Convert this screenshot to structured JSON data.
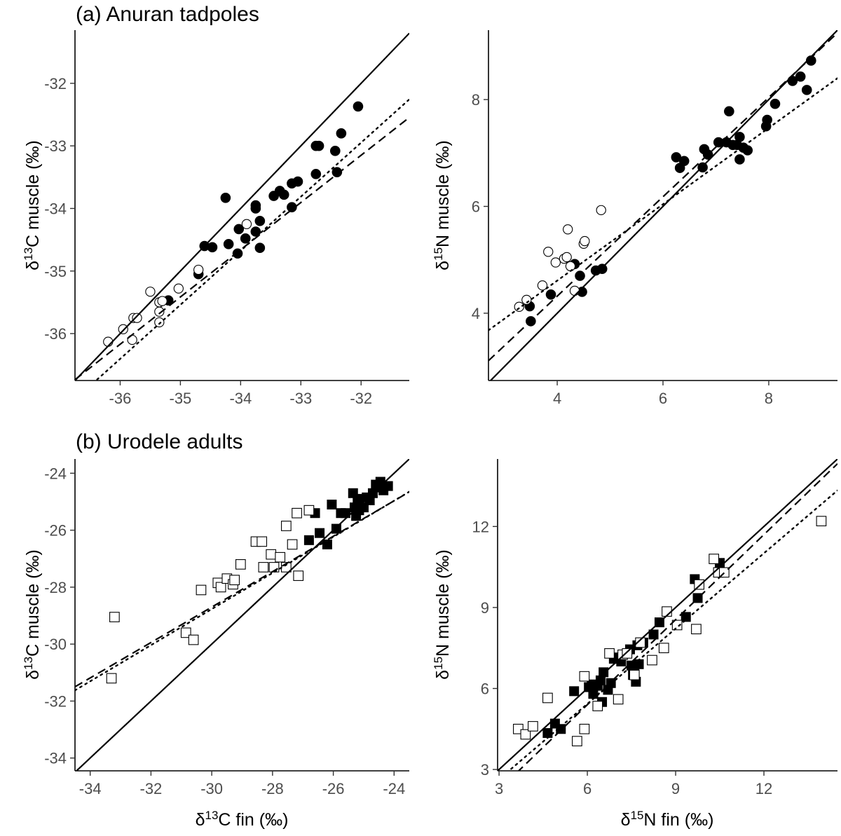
{
  "figure": {
    "row_titles": [
      "(a) Anuran tadpoles",
      "(b) Urodele adults"
    ]
  },
  "chart_data": [
    {
      "type": "scatter",
      "panel": "a-left",
      "title": "(a) Anuran tadpoles",
      "ylabel": "δ13C muscle (‰)",
      "xlabel": "",
      "xlim": [
        -36.75,
        -31.2
      ],
      "ylim": [
        -36.75,
        -31.15
      ],
      "xticks": [
        -36,
        -35,
        -34,
        -33,
        -32
      ],
      "yticks": [
        -36,
        -35,
        -34,
        -33,
        -32
      ],
      "marker": "circle",
      "series": [
        {
          "filled": true,
          "points": [
            [
              -35.2,
              -35.47
            ],
            [
              -34.7,
              -35.05
            ],
            [
              -34.6,
              -34.6
            ],
            [
              -34.47,
              -34.62
            ],
            [
              -34.25,
              -33.83
            ],
            [
              -34.2,
              -34.57
            ],
            [
              -34.05,
              -34.72
            ],
            [
              -34.03,
              -34.33
            ],
            [
              -33.92,
              -34.48
            ],
            [
              -33.75,
              -34.37
            ],
            [
              -33.75,
              -33.95
            ],
            [
              -33.75,
              -34.0
            ],
            [
              -33.68,
              -34.63
            ],
            [
              -33.68,
              -34.2
            ],
            [
              -33.45,
              -33.8
            ],
            [
              -33.35,
              -33.72
            ],
            [
              -33.28,
              -33.78
            ],
            [
              -33.15,
              -33.6
            ],
            [
              -33.15,
              -33.98
            ],
            [
              -33.05,
              -33.57
            ],
            [
              -32.75,
              -33.45
            ],
            [
              -32.75,
              -33.0
            ],
            [
              -32.7,
              -33.0
            ],
            [
              -32.43,
              -33.08
            ],
            [
              -32.4,
              -33.42
            ],
            [
              -32.33,
              -32.8
            ],
            [
              -32.05,
              -32.37
            ]
          ]
        },
        {
          "filled": false,
          "points": [
            [
              -36.2,
              -36.13
            ],
            [
              -35.95,
              -35.93
            ],
            [
              -35.8,
              -36.1
            ],
            [
              -35.78,
              -35.75
            ],
            [
              -35.72,
              -35.75
            ],
            [
              -35.5,
              -35.33
            ],
            [
              -35.35,
              -35.5
            ],
            [
              -35.35,
              -35.65
            ],
            [
              -35.35,
              -35.82
            ],
            [
              -35.3,
              -35.48
            ],
            [
              -35.03,
              -35.28
            ],
            [
              -34.7,
              -34.98
            ],
            [
              -33.9,
              -34.25
            ]
          ]
        }
      ],
      "lines": [
        {
          "style": "solid",
          "intercept": 0,
          "slope": 1
        },
        {
          "style": "dashed",
          "intercept": -8.99,
          "slope": 0.755
        },
        {
          "style": "dotted",
          "intercept": -5.3,
          "slope": 0.864
        }
      ]
    },
    {
      "type": "scatter",
      "panel": "a-right",
      "title": "",
      "ylabel": "δ15N muscle (‰)",
      "xlabel": "",
      "xlim": [
        2.7,
        9.3
      ],
      "ylim": [
        2.74,
        9.3
      ],
      "xticks": [
        4,
        6,
        8
      ],
      "yticks": [
        4,
        6,
        8
      ],
      "marker": "circle",
      "series": [
        {
          "filled": true,
          "points": [
            [
              3.48,
              4.13
            ],
            [
              3.5,
              3.85
            ],
            [
              3.88,
              4.35
            ],
            [
              4.33,
              4.92
            ],
            [
              4.43,
              4.7
            ],
            [
              4.47,
              4.4
            ],
            [
              4.73,
              4.8
            ],
            [
              4.85,
              4.83
            ],
            [
              6.25,
              6.92
            ],
            [
              6.32,
              6.72
            ],
            [
              6.4,
              6.85
            ],
            [
              6.75,
              6.73
            ],
            [
              6.78,
              7.07
            ],
            [
              6.85,
              6.97
            ],
            [
              7.05,
              7.2
            ],
            [
              7.2,
              7.2
            ],
            [
              7.25,
              7.78
            ],
            [
              7.32,
              7.15
            ],
            [
              7.4,
              7.15
            ],
            [
              7.45,
              6.88
            ],
            [
              7.45,
              7.3
            ],
            [
              7.52,
              7.1
            ],
            [
              7.6,
              7.05
            ],
            [
              7.95,
              7.5
            ],
            [
              7.97,
              7.62
            ],
            [
              8.12,
              7.92
            ],
            [
              8.45,
              8.35
            ],
            [
              8.6,
              8.43
            ],
            [
              8.72,
              8.18
            ],
            [
              8.8,
              8.73
            ]
          ]
        },
        {
          "filled": false,
          "points": [
            [
              3.28,
              4.12
            ],
            [
              3.42,
              4.25
            ],
            [
              3.72,
              4.52
            ],
            [
              3.83,
              5.15
            ],
            [
              3.97,
              4.95
            ],
            [
              4.13,
              5.02
            ],
            [
              4.18,
              5.05
            ],
            [
              4.2,
              5.57
            ],
            [
              4.25,
              4.88
            ],
            [
              4.33,
              4.42
            ],
            [
              4.5,
              5.3
            ],
            [
              4.52,
              5.35
            ],
            [
              4.83,
              5.93
            ]
          ]
        }
      ],
      "lines": [
        {
          "style": "solid",
          "intercept": 0,
          "slope": 1
        },
        {
          "style": "dashed",
          "intercept": 0.6,
          "slope": 0.93
        },
        {
          "style": "dotted",
          "intercept": 1.75,
          "slope": 0.715
        }
      ]
    },
    {
      "type": "scatter",
      "panel": "b-left",
      "title": "(b) Urodele adults",
      "ylabel": "δ13C muscle (‰)",
      "xlabel": "δ13C fin (‰)",
      "xlim": [
        -34.5,
        -23.5
      ],
      "ylim": [
        -34.45,
        -23.5
      ],
      "xticks": [
        -34,
        -32,
        -30,
        -28,
        -26,
        -24
      ],
      "yticks": [
        -34,
        -32,
        -30,
        -28,
        -26,
        -24
      ],
      "marker": "square",
      "series": [
        {
          "filled": true,
          "points": [
            [
              -26.8,
              -26.35
            ],
            [
              -26.6,
              -25.4
            ],
            [
              -26.45,
              -26.1
            ],
            [
              -26.2,
              -26.5
            ],
            [
              -26.05,
              -25.1
            ],
            [
              -25.9,
              -25.95
            ],
            [
              -25.75,
              -25.4
            ],
            [
              -25.6,
              -25.4
            ],
            [
              -25.35,
              -24.7
            ],
            [
              -25.3,
              -25.2
            ],
            [
              -25.25,
              -25.5
            ],
            [
              -25.2,
              -24.9
            ],
            [
              -25.15,
              -25.3
            ],
            [
              -25.0,
              -25.2
            ],
            [
              -24.9,
              -24.85
            ],
            [
              -24.8,
              -24.95
            ],
            [
              -24.7,
              -24.7
            ],
            [
              -24.6,
              -24.4
            ],
            [
              -24.5,
              -24.5
            ],
            [
              -24.45,
              -24.3
            ],
            [
              -24.35,
              -24.6
            ],
            [
              -24.2,
              -24.45
            ]
          ]
        },
        {
          "filled": false,
          "points": [
            [
              -33.3,
              -31.2
            ],
            [
              -33.2,
              -29.05
            ],
            [
              -30.85,
              -29.6
            ],
            [
              -30.6,
              -29.85
            ],
            [
              -30.35,
              -28.1
            ],
            [
              -29.8,
              -27.85
            ],
            [
              -29.7,
              -28.0
            ],
            [
              -29.5,
              -27.7
            ],
            [
              -29.3,
              -27.9
            ],
            [
              -29.25,
              -27.75
            ],
            [
              -29.05,
              -27.2
            ],
            [
              -28.55,
              -26.4
            ],
            [
              -28.35,
              -26.4
            ],
            [
              -28.3,
              -27.3
            ],
            [
              -28.05,
              -26.85
            ],
            [
              -27.95,
              -27.3
            ],
            [
              -27.75,
              -26.95
            ],
            [
              -27.55,
              -25.85
            ],
            [
              -27.55,
              -27.3
            ],
            [
              -27.35,
              -26.5
            ],
            [
              -27.2,
              -25.4
            ],
            [
              -27.15,
              -27.6
            ],
            [
              -26.8,
              -25.3
            ]
          ]
        }
      ],
      "lines": [
        {
          "style": "solid",
          "intercept": 0,
          "slope": 1
        },
        {
          "style": "dashed",
          "intercept": -10.04,
          "slope": 0.622
        },
        {
          "style": "dotted",
          "intercept": -9.75,
          "slope": 0.634
        }
      ]
    },
    {
      "type": "scatter",
      "panel": "b-right",
      "title": "",
      "ylabel": "δ15N muscle (‰)",
      "xlabel": "δ15N fin (‰)",
      "xlim": [
        2.95,
        14.5
      ],
      "ylim": [
        2.95,
        14.5
      ],
      "xticks": [
        3,
        6,
        9,
        12
      ],
      "yticks": [
        3,
        6,
        9,
        12
      ],
      "marker": "square",
      "series": [
        {
          "filled": true,
          "points": [
            [
              4.65,
              4.35
            ],
            [
              4.9,
              4.7
            ],
            [
              5.1,
              4.5
            ],
            [
              5.55,
              5.9
            ],
            [
              6.05,
              6.05
            ],
            [
              6.15,
              6.15
            ],
            [
              6.2,
              5.8
            ],
            [
              6.35,
              6.1
            ],
            [
              6.45,
              6.3
            ],
            [
              6.5,
              5.5
            ],
            [
              6.55,
              6.6
            ],
            [
              6.7,
              5.95
            ],
            [
              6.8,
              6.2
            ],
            [
              6.9,
              7.1
            ],
            [
              7.05,
              7.15
            ],
            [
              7.15,
              7.0
            ],
            [
              7.45,
              7.45
            ],
            [
              7.5,
              6.85
            ],
            [
              7.55,
              6.5
            ],
            [
              7.6,
              6.7
            ],
            [
              7.65,
              6.25
            ],
            [
              7.7,
              7.6
            ],
            [
              7.75,
              6.9
            ],
            [
              7.9,
              7.7
            ],
            [
              8.25,
              8.0
            ],
            [
              8.45,
              8.45
            ],
            [
              9.35,
              8.65
            ],
            [
              9.65,
              10.05
            ],
            [
              9.75,
              9.35
            ],
            [
              10.5,
              10.65
            ]
          ]
        },
        {
          "filled": false,
          "points": [
            [
              3.65,
              4.5
            ],
            [
              3.9,
              4.3
            ],
            [
              4.15,
              4.6
            ],
            [
              4.65,
              5.65
            ],
            [
              5.65,
              4.05
            ],
            [
              5.9,
              6.45
            ],
            [
              5.9,
              4.5
            ],
            [
              6.35,
              5.35
            ],
            [
              6.75,
              7.3
            ],
            [
              7.05,
              5.6
            ],
            [
              7.2,
              7.25
            ],
            [
              7.35,
              7.3
            ],
            [
              7.6,
              6.5
            ],
            [
              7.8,
              7.7
            ],
            [
              8.2,
              7.05
            ],
            [
              8.6,
              7.5
            ],
            [
              8.7,
              8.85
            ],
            [
              9.05,
              8.35
            ],
            [
              9.7,
              8.2
            ],
            [
              9.8,
              9.85
            ],
            [
              10.3,
              10.8
            ],
            [
              10.45,
              10.3
            ],
            [
              10.65,
              10.3
            ],
            [
              13.95,
              12.2
            ]
          ]
        }
      ],
      "lines": [
        {
          "style": "solid",
          "intercept": 0,
          "slope": 1
        },
        {
          "style": "dashed",
          "intercept": -0.9,
          "slope": 1.05
        },
        {
          "style": "dotted",
          "intercept": -0.15,
          "slope": 0.93
        }
      ]
    }
  ]
}
